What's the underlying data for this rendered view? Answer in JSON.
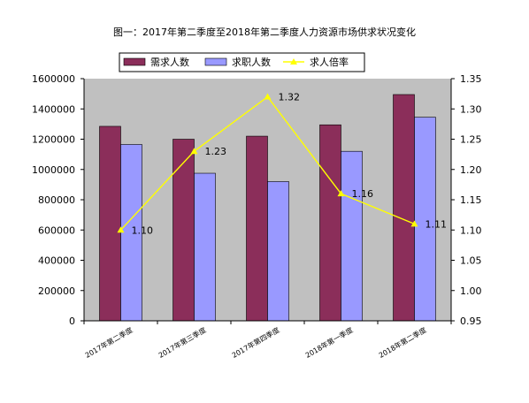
{
  "chart_data": {
    "type": "bar",
    "title": "图一：2017年第二季度至2018年第二季度人力资源市场供求状况变化",
    "categories": [
      "2017年第二季度",
      "2017年第三季度",
      "2017年第四季度",
      "2018年第一季度",
      "2018年第二季度"
    ],
    "series": [
      {
        "name": "需求人数",
        "type": "bar",
        "axis": "left",
        "color": "#8b2e5a",
        "values": [
          1285000,
          1200000,
          1220000,
          1295000,
          1495000
        ]
      },
      {
        "name": "求职人数",
        "type": "bar",
        "axis": "left",
        "color": "#9999ff",
        "values": [
          1165000,
          975000,
          920000,
          1120000,
          1345000
        ]
      },
      {
        "name": "求人倍率",
        "type": "line",
        "axis": "right",
        "color": "#ffff00",
        "values": [
          1.1,
          1.23,
          1.32,
          1.16,
          1.11
        ],
        "labels": [
          "1.10",
          "1.23",
          "1.32",
          "1.16",
          "1.11"
        ]
      }
    ],
    "ylim_left": [
      0,
      1600000
    ],
    "ylim_right": [
      0.95,
      1.35
    ],
    "yticks_left": [
      "0",
      "200000",
      "400000",
      "600000",
      "800000",
      "1000000",
      "1200000",
      "1400000",
      "1600000"
    ],
    "yticks_right": [
      "0.95",
      "1.00",
      "1.05",
      "1.10",
      "1.15",
      "1.20",
      "1.25",
      "1.30",
      "1.35"
    ],
    "plot_background": "#c0c0c0",
    "grid": false,
    "legend_position": "top"
  }
}
